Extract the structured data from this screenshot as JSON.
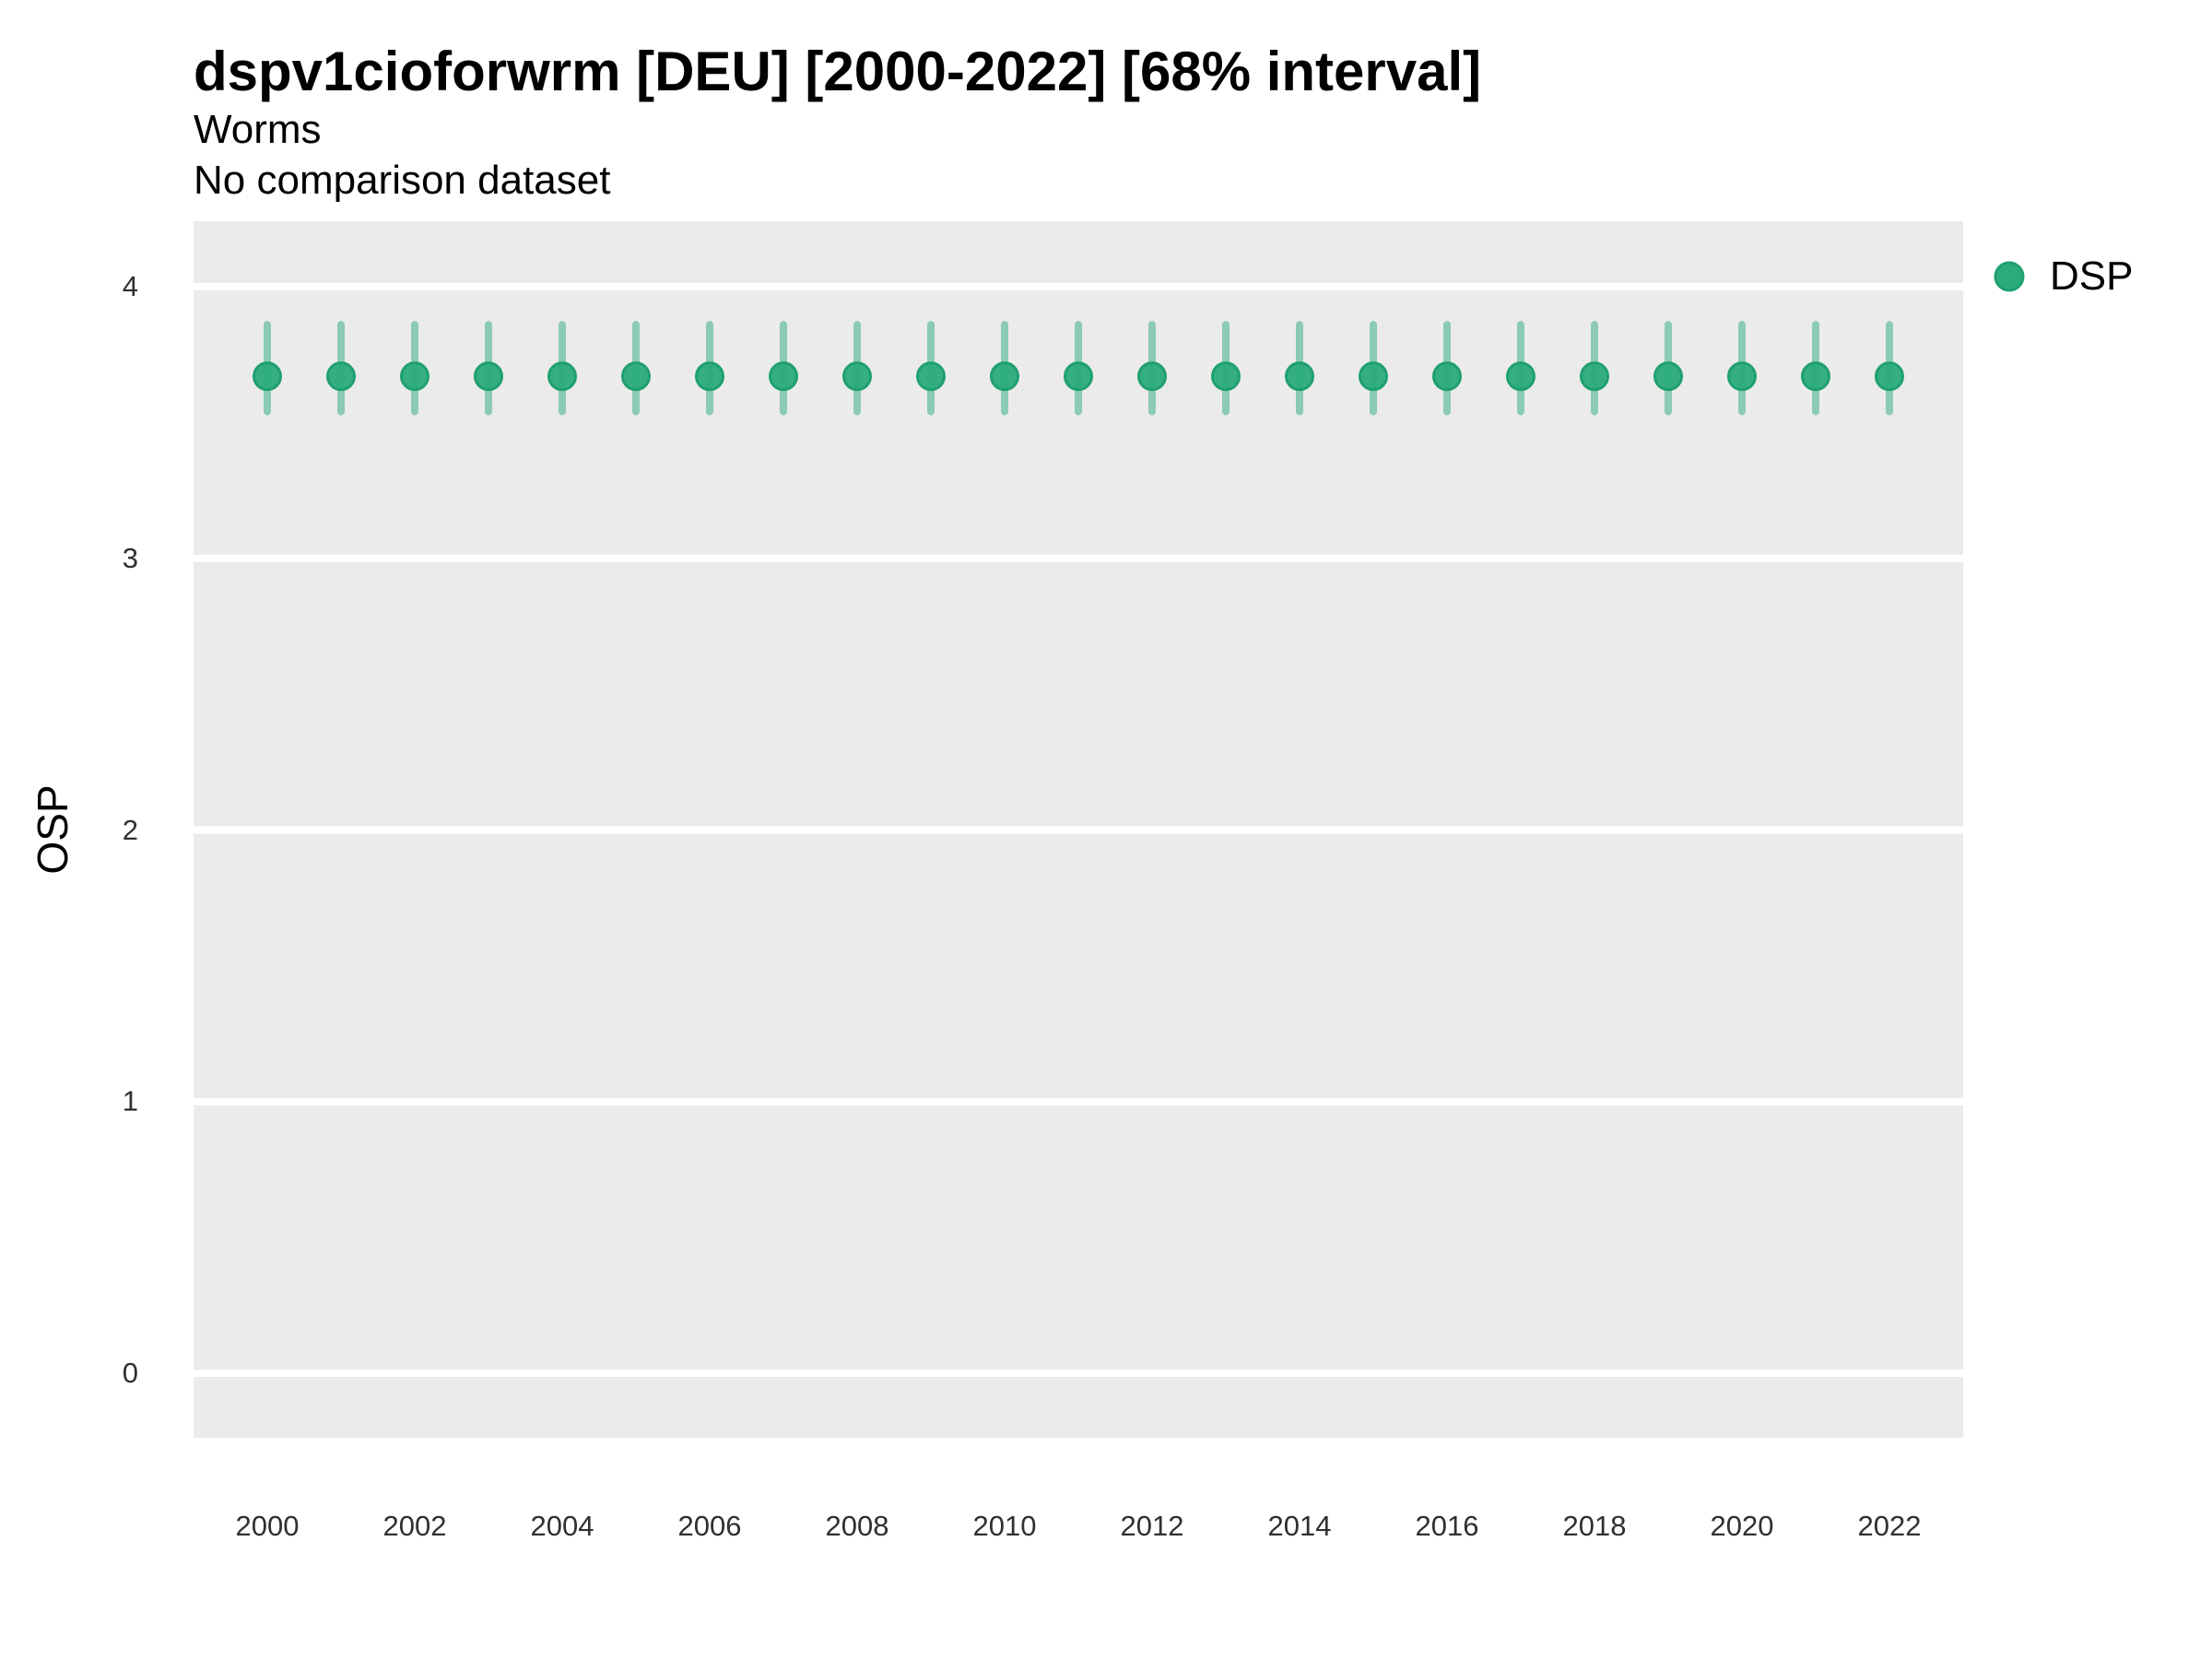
{
  "chart_data": {
    "type": "scatter",
    "title": "dspv1cioforwrm [DEU] [2000-2022] [68% interval]",
    "subtitle": "Worms",
    "subtitle2": "No comparison dataset",
    "xlabel": "",
    "ylabel": "OSP",
    "interval_label": "68% interval",
    "country": "DEU",
    "grid": "horizontal-major",
    "panel_bg": "#EBEBEB",
    "grid_color": "#FFFFFF",
    "point_color": "#2BAB7C",
    "point_stroke": "#1FA06E",
    "interval_color": "rgba(43,171,124,0.5)",
    "xlim": [
      1999,
      2023
    ],
    "ylim": [
      -0.24,
      4.23
    ],
    "xticks": [
      "2000",
      "2002",
      "2004",
      "2006",
      "2008",
      "2010",
      "2012",
      "2014",
      "2016",
      "2018",
      "2020",
      "2022"
    ],
    "yticks": [
      "0",
      "1",
      "2",
      "3",
      "4"
    ],
    "legend": {
      "position": "right-top",
      "entries": [
        {
          "label": "DSP",
          "color": "#2BAB7C"
        }
      ]
    },
    "x": [
      2000,
      2001,
      2002,
      2003,
      2004,
      2005,
      2006,
      2007,
      2008,
      2009,
      2010,
      2011,
      2012,
      2013,
      2014,
      2015,
      2016,
      2017,
      2018,
      2019,
      2020,
      2021,
      2022
    ],
    "series": [
      {
        "name": "DSP",
        "median": [
          3.67,
          3.67,
          3.67,
          3.67,
          3.67,
          3.67,
          3.67,
          3.67,
          3.67,
          3.67,
          3.67,
          3.67,
          3.67,
          3.67,
          3.67,
          3.67,
          3.67,
          3.67,
          3.67,
          3.67,
          3.67,
          3.67,
          3.67
        ],
        "lower": [
          3.54,
          3.54,
          3.54,
          3.54,
          3.54,
          3.54,
          3.54,
          3.54,
          3.54,
          3.54,
          3.54,
          3.54,
          3.54,
          3.54,
          3.54,
          3.54,
          3.54,
          3.54,
          3.54,
          3.54,
          3.54,
          3.54,
          3.54
        ],
        "upper": [
          3.86,
          3.86,
          3.86,
          3.86,
          3.86,
          3.86,
          3.86,
          3.86,
          3.86,
          3.86,
          3.86,
          3.86,
          3.86,
          3.86,
          3.86,
          3.86,
          3.86,
          3.86,
          3.86,
          3.86,
          3.86,
          3.86,
          3.86
        ]
      }
    ]
  }
}
